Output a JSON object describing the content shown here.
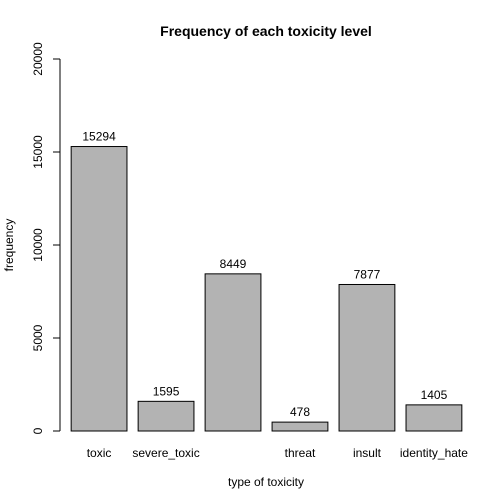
{
  "chart_data": {
    "type": "bar",
    "title": "Frequency of each toxicity level",
    "xlabel": "type of toxicity",
    "ylabel": "frequency",
    "ylim": [
      0,
      20000
    ],
    "yticks": [
      0,
      5000,
      10000,
      15000,
      20000
    ],
    "categories": [
      "toxic",
      "severe_toxic",
      "",
      "threat",
      "insult",
      "identity_hate"
    ],
    "values": [
      15294,
      1595,
      8449,
      478,
      7877,
      1405
    ],
    "bar_color": "#b3b3b3",
    "grid": false,
    "legend": "none"
  }
}
